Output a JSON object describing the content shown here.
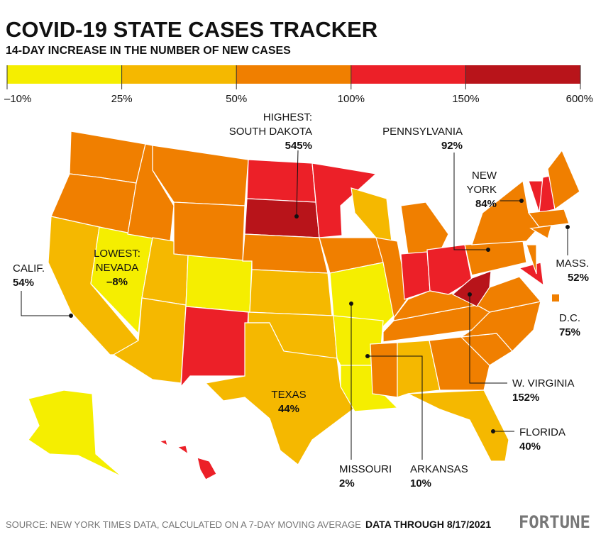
{
  "header": {
    "title": "COVID-19 STATE CASES TRACKER",
    "subtitle": "14-DAY INCREASE IN THE NUMBER OF NEW CASES"
  },
  "legend": {
    "ticks": [
      "–10%",
      "25%",
      "50%",
      "100%",
      "150%",
      "600%"
    ],
    "colors": [
      "#f5ee00",
      "#f5b800",
      "#f07f00",
      "#ec2028",
      "#b8141a"
    ]
  },
  "callouts": [
    {
      "lines": [
        "HIGHEST:",
        "SOUTH DAKOTA"
      ],
      "value": "545%"
    },
    {
      "lines": [
        "LOWEST:",
        "NEVADA"
      ],
      "value": "–8%"
    },
    {
      "lines": [
        "CALIF."
      ],
      "value": "54%"
    },
    {
      "lines": [
        "PENNSYLVANIA"
      ],
      "value": "92%"
    },
    {
      "lines": [
        "NEW",
        "YORK"
      ],
      "value": "84%"
    },
    {
      "lines": [
        "MASS."
      ],
      "value": "52%"
    },
    {
      "lines": [
        "D.C."
      ],
      "value": "75%"
    },
    {
      "lines": [
        "W. VIRGINIA"
      ],
      "value": "152%"
    },
    {
      "lines": [
        "FLORIDA"
      ],
      "value": "40%"
    },
    {
      "lines": [
        "TEXAS"
      ],
      "value": "44%"
    },
    {
      "lines": [
        "MISSOURI"
      ],
      "value": "2%"
    },
    {
      "lines": [
        "ARKANSAS"
      ],
      "value": "10%"
    }
  ],
  "footer": {
    "source": "SOURCE: NEW YORK TIMES DATA, CALCULATED ON A 7-DAY MOVING AVERAGE",
    "date": "DATA THROUGH 8/17/2021",
    "brand": "FORTUNE"
  }
}
